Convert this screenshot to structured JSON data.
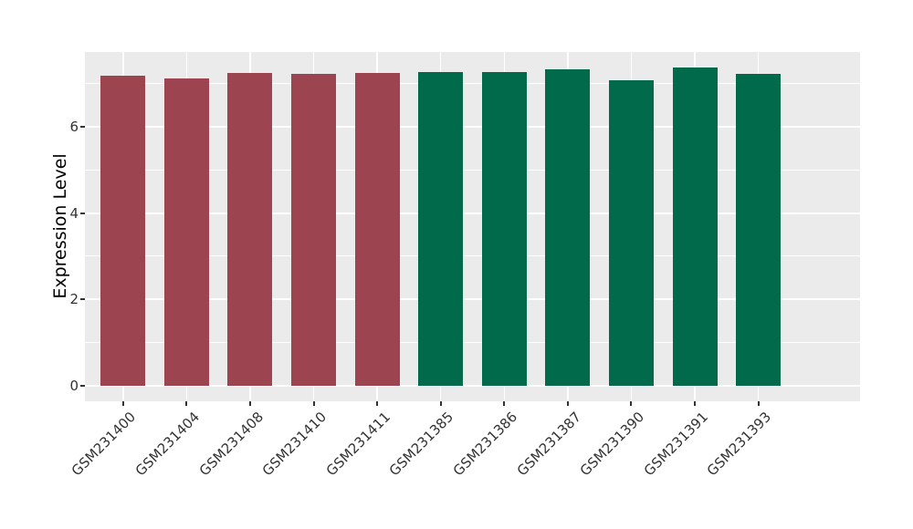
{
  "figure": {
    "background": "#FFFFFF"
  },
  "chart_data": {
    "type": "bar",
    "title": "",
    "xlabel": "",
    "ylabel": "Expression Level",
    "categories": [
      "GSM231400",
      "GSM231404",
      "GSM231408",
      "GSM231410",
      "GSM231411",
      "GSM231385",
      "GSM231386",
      "GSM231387",
      "GSM231390",
      "GSM231391",
      "GSM231393"
    ],
    "values": [
      7.18,
      7.12,
      7.26,
      7.24,
      7.26,
      7.27,
      7.27,
      7.34,
      7.09,
      7.37,
      7.24
    ],
    "bar_colors": [
      "#9C4450",
      "#9C4450",
      "#9C4450",
      "#9C4450",
      "#9C4450",
      "#006A4A",
      "#006A4A",
      "#006A4A",
      "#006A4A",
      "#006A4A",
      "#006A4A"
    ],
    "yticks": [
      0,
      2,
      4,
      6
    ],
    "minor_yticks": [
      1,
      3,
      5,
      7
    ],
    "ylim": [
      -0.37,
      7.74
    ],
    "grid": "on",
    "legend": "none",
    "x_label_angle": -45
  },
  "style": {
    "panel_bg": "#EBEBEB",
    "grid_color": "#FFFFFF",
    "tick_text_color": "#333333",
    "axis_title_color": "#000000",
    "group1_color": "#9C4450",
    "group2_color": "#006A4A"
  }
}
